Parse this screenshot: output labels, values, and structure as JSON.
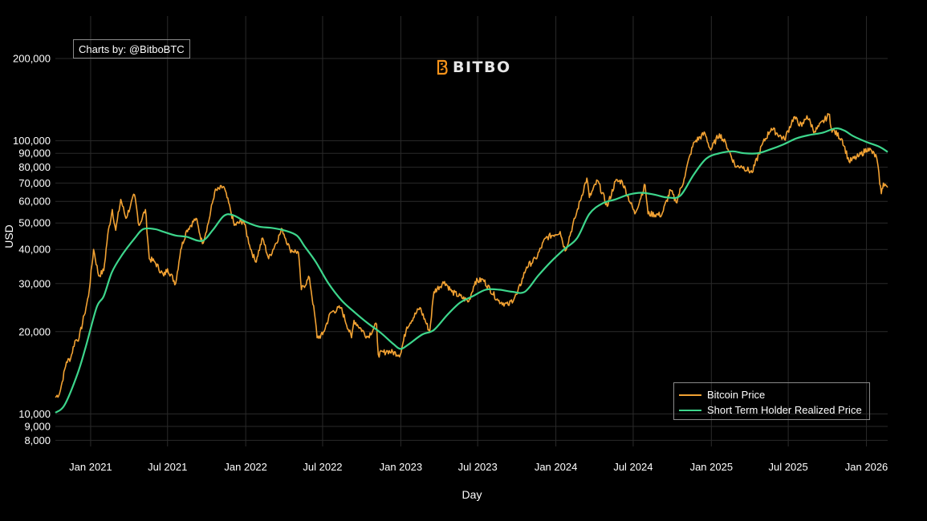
{
  "attribution": "Charts by: @BitboBTC",
  "logo": {
    "text": "BITBO",
    "brand_color": "#f7931a"
  },
  "legend": [
    {
      "label": "Bitcoin Price",
      "color": "#f2a233"
    },
    {
      "label": "Short Term Holder Realized Price",
      "color": "#3dd68c"
    }
  ],
  "chart_data": {
    "type": "line",
    "title": "",
    "xlabel": "Day",
    "ylabel": "USD",
    "yscale": "log",
    "ylim": [
      7600,
      250000
    ],
    "xlim": [
      "2020-10-10",
      "2026-02-20"
    ],
    "y_ticks": [
      {
        "value": 8000,
        "label": "8,000"
      },
      {
        "value": 9000,
        "label": "9,000"
      },
      {
        "value": 10000,
        "label": "10,000"
      },
      {
        "value": 20000,
        "label": "20,000"
      },
      {
        "value": 30000,
        "label": "30,000"
      },
      {
        "value": 40000,
        "label": "40,000"
      },
      {
        "value": 50000,
        "label": "50,000"
      },
      {
        "value": 60000,
        "label": "60,000"
      },
      {
        "value": 70000,
        "label": "70,000"
      },
      {
        "value": 80000,
        "label": "80,000"
      },
      {
        "value": 90000,
        "label": "90,000"
      },
      {
        "value": 100000,
        "label": "100,000"
      },
      {
        "value": 200000,
        "label": "200,000"
      }
    ],
    "x_ticks": [
      {
        "value": "2021-01-01",
        "label": "Jan 2021"
      },
      {
        "value": "2021-07-01",
        "label": "Jul 2021"
      },
      {
        "value": "2022-01-01",
        "label": "Jan 2022"
      },
      {
        "value": "2022-07-01",
        "label": "Jul 2022"
      },
      {
        "value": "2023-01-01",
        "label": "Jan 2023"
      },
      {
        "value": "2023-07-01",
        "label": "Jul 2023"
      },
      {
        "value": "2024-01-01",
        "label": "Jan 2024"
      },
      {
        "value": "2024-07-01",
        "label": "Jul 2024"
      },
      {
        "value": "2025-01-01",
        "label": "Jan 2025"
      },
      {
        "value": "2025-07-01",
        "label": "Jul 2025"
      },
      {
        "value": "2026-01-01",
        "label": "Jan 2026"
      }
    ],
    "series": [
      {
        "name": "Bitcoin Price",
        "color": "#f2a233",
        "points": [
          [
            "2020-10-10",
            11500
          ],
          [
            "2020-10-20",
            11900
          ],
          [
            "2020-10-26",
            13100
          ],
          [
            "2020-11-05",
            15500
          ],
          [
            "2020-11-15",
            16000
          ],
          [
            "2020-11-25",
            18500
          ],
          [
            "2020-12-05",
            19000
          ],
          [
            "2020-12-17",
            23000
          ],
          [
            "2020-12-27",
            27000
          ],
          [
            "2021-01-08",
            40000
          ],
          [
            "2021-01-20",
            32000
          ],
          [
            "2021-02-01",
            33500
          ],
          [
            "2021-02-10",
            45000
          ],
          [
            "2021-02-21",
            56000
          ],
          [
            "2021-03-01",
            47000
          ],
          [
            "2021-03-13",
            61000
          ],
          [
            "2021-03-25",
            52000
          ],
          [
            "2021-04-05",
            58000
          ],
          [
            "2021-04-14",
            63500
          ],
          [
            "2021-04-25",
            49000
          ],
          [
            "2021-05-10",
            56000
          ],
          [
            "2021-05-19",
            37000
          ],
          [
            "2021-06-01",
            36000
          ],
          [
            "2021-06-22",
            32000
          ],
          [
            "2021-07-01",
            34000
          ],
          [
            "2021-07-20",
            30000
          ],
          [
            "2021-08-01",
            40000
          ],
          [
            "2021-08-15",
            47000
          ],
          [
            "2021-09-06",
            52000
          ],
          [
            "2021-09-21",
            42000
          ],
          [
            "2021-10-05",
            50000
          ],
          [
            "2021-10-20",
            65000
          ],
          [
            "2021-11-10",
            68000
          ],
          [
            "2021-11-26",
            56000
          ],
          [
            "2021-12-05",
            49000
          ],
          [
            "2021-12-27",
            51000
          ],
          [
            "2022-01-10",
            41500
          ],
          [
            "2022-01-24",
            36000
          ],
          [
            "2022-02-10",
            44000
          ],
          [
            "2022-02-24",
            37000
          ],
          [
            "2022-03-28",
            47500
          ],
          [
            "2022-04-15",
            40000
          ],
          [
            "2022-05-05",
            39000
          ],
          [
            "2022-05-12",
            28500
          ],
          [
            "2022-05-31",
            31500
          ],
          [
            "2022-06-14",
            22000
          ],
          [
            "2022-06-18",
            19000
          ],
          [
            "2022-07-01",
            19500
          ],
          [
            "2022-07-20",
            23500
          ],
          [
            "2022-08-13",
            24500
          ],
          [
            "2022-09-07",
            19000
          ],
          [
            "2022-09-13",
            22000
          ],
          [
            "2022-10-15",
            19100
          ],
          [
            "2022-11-05",
            21300
          ],
          [
            "2022-11-09",
            16500
          ],
          [
            "2022-12-01",
            17000
          ],
          [
            "2022-12-31",
            16500
          ],
          [
            "2023-01-15",
            20800
          ],
          [
            "2023-02-15",
            24500
          ],
          [
            "2023-03-10",
            20000
          ],
          [
            "2023-03-20",
            28000
          ],
          [
            "2023-04-14",
            30500
          ],
          [
            "2023-05-01",
            28000
          ],
          [
            "2023-06-10",
            25800
          ],
          [
            "2023-06-25",
            30500
          ],
          [
            "2023-07-14",
            31000
          ],
          [
            "2023-08-18",
            26000
          ],
          [
            "2023-09-11",
            25000
          ],
          [
            "2023-10-02",
            27500
          ],
          [
            "2023-10-24",
            34500
          ],
          [
            "2023-11-15",
            37000
          ],
          [
            "2023-12-08",
            44000
          ],
          [
            "2024-01-11",
            46500
          ],
          [
            "2024-01-23",
            39500
          ],
          [
            "2024-02-15",
            52000
          ],
          [
            "2024-03-14",
            73000
          ],
          [
            "2024-03-20",
            62000
          ],
          [
            "2024-04-08",
            71500
          ],
          [
            "2024-05-01",
            57500
          ],
          [
            "2024-05-20",
            71000
          ],
          [
            "2024-06-05",
            71000
          ],
          [
            "2024-07-05",
            54000
          ],
          [
            "2024-07-29",
            69000
          ],
          [
            "2024-08-05",
            54000
          ],
          [
            "2024-09-06",
            53500
          ],
          [
            "2024-09-27",
            66000
          ],
          [
            "2024-10-10",
            59500
          ],
          [
            "2024-10-29",
            72500
          ],
          [
            "2024-11-12",
            89000
          ],
          [
            "2024-11-22",
            99000
          ],
          [
            "2024-12-17",
            106500
          ],
          [
            "2024-12-30",
            92500
          ],
          [
            "2025-01-20",
            106000
          ],
          [
            "2025-02-05",
            97000
          ],
          [
            "2025-02-28",
            80000
          ],
          [
            "2025-03-12",
            81000
          ],
          [
            "2025-04-07",
            76500
          ],
          [
            "2025-05-01",
            97000
          ],
          [
            "2025-05-22",
            111000
          ],
          [
            "2025-06-22",
            101000
          ],
          [
            "2025-07-14",
            122000
          ],
          [
            "2025-08-02",
            113000
          ],
          [
            "2025-08-14",
            123500
          ],
          [
            "2025-09-01",
            108000
          ],
          [
            "2025-10-06",
            125000
          ],
          [
            "2025-10-10",
            111000
          ],
          [
            "2025-11-05",
            101000
          ],
          [
            "2025-11-21",
            84000
          ],
          [
            "2025-12-15",
            88000
          ],
          [
            "2026-01-05",
            94000
          ],
          [
            "2026-01-25",
            87000
          ],
          [
            "2026-02-05",
            64000
          ],
          [
            "2026-02-10",
            70000
          ],
          [
            "2026-02-20",
            67500
          ]
        ]
      },
      {
        "name": "Short Term Holder Realized Price",
        "color": "#3dd68c",
        "points": [
          [
            "2020-10-10",
            10100
          ],
          [
            "2020-11-01",
            10800
          ],
          [
            "2020-12-01",
            14000
          ],
          [
            "2020-12-20",
            17500
          ],
          [
            "2021-01-15",
            24500
          ],
          [
            "2021-02-01",
            27000
          ],
          [
            "2021-02-20",
            33000
          ],
          [
            "2021-03-15",
            38000
          ],
          [
            "2021-04-15",
            44000
          ],
          [
            "2021-05-05",
            47500
          ],
          [
            "2021-06-01",
            47500
          ],
          [
            "2021-06-20",
            46500
          ],
          [
            "2021-07-20",
            45000
          ],
          [
            "2021-08-15",
            44500
          ],
          [
            "2021-09-20",
            43000
          ],
          [
            "2021-10-15",
            47000
          ],
          [
            "2021-11-10",
            53000
          ],
          [
            "2021-12-01",
            53500
          ],
          [
            "2022-01-01",
            50500
          ],
          [
            "2022-02-01",
            48500
          ],
          [
            "2022-03-01",
            48000
          ],
          [
            "2022-04-01",
            47000
          ],
          [
            "2022-05-01",
            45000
          ],
          [
            "2022-05-20",
            41000
          ],
          [
            "2022-06-15",
            36000
          ],
          [
            "2022-07-15",
            30000
          ],
          [
            "2022-08-15",
            26000
          ],
          [
            "2022-09-15",
            23500
          ],
          [
            "2022-10-15",
            21500
          ],
          [
            "2022-11-15",
            19800
          ],
          [
            "2022-12-15",
            18000
          ],
          [
            "2023-01-01",
            17300
          ],
          [
            "2023-01-20",
            18000
          ],
          [
            "2023-02-20",
            19500
          ],
          [
            "2023-03-20",
            20300
          ],
          [
            "2023-04-20",
            23000
          ],
          [
            "2023-05-20",
            25500
          ],
          [
            "2023-06-20",
            27000
          ],
          [
            "2023-07-20",
            28500
          ],
          [
            "2023-08-20",
            28500
          ],
          [
            "2023-09-20",
            28000
          ],
          [
            "2023-10-20",
            28000
          ],
          [
            "2023-11-20",
            32000
          ],
          [
            "2023-12-20",
            36000
          ],
          [
            "2024-01-20",
            40000
          ],
          [
            "2024-02-20",
            44000
          ],
          [
            "2024-03-20",
            54000
          ],
          [
            "2024-04-20",
            59000
          ],
          [
            "2024-05-20",
            61000
          ],
          [
            "2024-06-20",
            63500
          ],
          [
            "2024-07-20",
            64500
          ],
          [
            "2024-08-20",
            63500
          ],
          [
            "2024-09-20",
            62000
          ],
          [
            "2024-10-20",
            63000
          ],
          [
            "2024-11-20",
            75000
          ],
          [
            "2024-12-20",
            86000
          ],
          [
            "2025-01-20",
            90000
          ],
          [
            "2025-02-20",
            91500
          ],
          [
            "2025-03-20",
            90000
          ],
          [
            "2025-04-20",
            90000
          ],
          [
            "2025-05-20",
            93000
          ],
          [
            "2025-06-20",
            97000
          ],
          [
            "2025-07-20",
            102000
          ],
          [
            "2025-08-20",
            105000
          ],
          [
            "2025-09-20",
            107000
          ],
          [
            "2025-10-20",
            111000
          ],
          [
            "2025-11-10",
            109000
          ],
          [
            "2025-12-01",
            104000
          ],
          [
            "2026-01-01",
            99000
          ],
          [
            "2026-02-01",
            95000
          ],
          [
            "2026-02-20",
            91000
          ]
        ]
      }
    ],
    "grid": true,
    "legend_position": "bottom-right"
  }
}
